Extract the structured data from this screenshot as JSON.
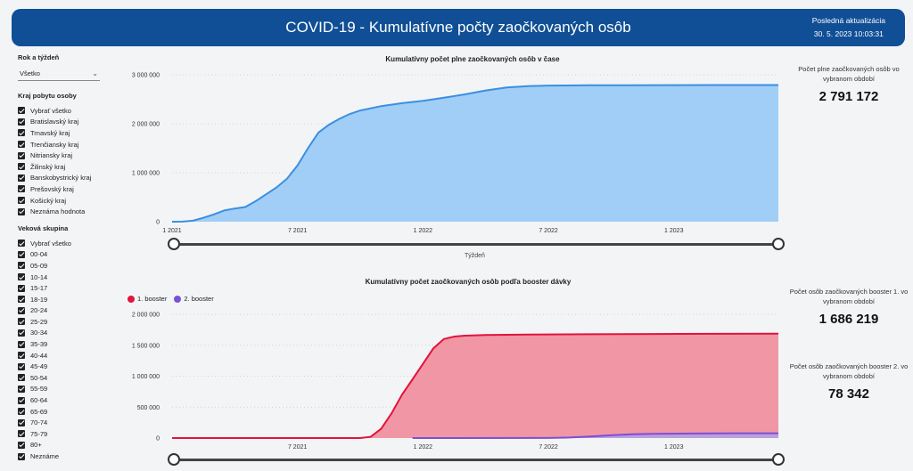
{
  "header": {
    "title": "COVID-19 - Kumulatívne počty zaočkovaných osôb",
    "update_label": "Posledná aktualizácia",
    "update_value": "30. 5. 2023 10:03:31"
  },
  "sidebar": {
    "year_week_label": "Rok a týždeň",
    "year_week_value": "Všetko",
    "region_label": "Kraj pobytu osoby",
    "regions": [
      "Vybrať všetko",
      "Bratislavský kraj",
      "Trnavský kraj",
      "Trenčiansky kraj",
      "Nitriansky kraj",
      "Žilinský kraj",
      "Banskobystrický kraj",
      "Prešovský kraj",
      "Košický kraj",
      "Neznáma hodnota"
    ],
    "age_label": "Veková skupina",
    "ages": [
      "Vybrať všetko",
      "00-04",
      "05-09",
      "10-14",
      "15-17",
      "18-19",
      "20-24",
      "25-29",
      "30-34",
      "35-39",
      "40-44",
      "45-49",
      "50-54",
      "55-59",
      "60-64",
      "65-69",
      "70-74",
      "75-79",
      "80+",
      "Neznáme"
    ]
  },
  "kpis": {
    "full": {
      "label": "Počet plne zaočkovaných osôb vo vybranom období",
      "value": "2 791 172"
    },
    "booster1": {
      "label": "Počet osôb zaočkovaných booster 1. vo vybranom období",
      "value": "1 686 219"
    },
    "booster2": {
      "label": "Počet osôb zaočkovaných booster 2. vo vybranom období",
      "value": "78 342"
    }
  },
  "chart_data": [
    {
      "type": "area",
      "title": "Kumulatívny počet plne zaočkovaných osôb v čase",
      "xlabel": "Týždeň",
      "ylabel": "",
      "x_ticks": [
        "1 2021",
        "7 2021",
        "1 2022",
        "7 2022",
        "1 2023"
      ],
      "y_ticks": [
        "0",
        "1 000 000",
        "2 000 000",
        "3 000 000"
      ],
      "ylim": [
        0,
        3000000
      ],
      "xlim_months": [
        0,
        29
      ],
      "color": "#3a8fe0",
      "fill": "#9ccbf7",
      "series": [
        {
          "points": [
            [
              0,
              0
            ],
            [
              0.5,
              2000
            ],
            [
              1,
              20000
            ],
            [
              1.5,
              80000
            ],
            [
              2,
              150000
            ],
            [
              2.5,
              230000
            ],
            [
              3,
              270000
            ],
            [
              3.5,
              300000
            ],
            [
              4,
              420000
            ],
            [
              4.5,
              560000
            ],
            [
              5,
              700000
            ],
            [
              5.5,
              880000
            ],
            [
              6,
              1150000
            ],
            [
              6.5,
              1500000
            ],
            [
              7,
              1820000
            ],
            [
              7.5,
              1980000
            ],
            [
              8,
              2100000
            ],
            [
              8.5,
              2200000
            ],
            [
              9,
              2270000
            ],
            [
              10,
              2360000
            ],
            [
              11,
              2420000
            ],
            [
              12,
              2470000
            ],
            [
              13,
              2530000
            ],
            [
              14,
              2600000
            ],
            [
              15,
              2680000
            ],
            [
              16,
              2740000
            ],
            [
              17,
              2770000
            ],
            [
              18,
              2780000
            ],
            [
              20,
              2785000
            ],
            [
              22,
              2788000
            ],
            [
              24,
              2789500
            ],
            [
              26,
              2790500
            ],
            [
              29,
              2791172
            ]
          ]
        }
      ]
    },
    {
      "type": "area",
      "title": "Kumulatívny počet zaočkovaných osôb podľa booster dávky",
      "xlabel": "",
      "ylabel": "",
      "x_ticks": [
        "7 2021",
        "1 2022",
        "7 2022",
        "1 2023"
      ],
      "y_ticks": [
        "0",
        "500 000",
        "1 000 000",
        "1 500 000",
        "2 000 000"
      ],
      "ylim": [
        0,
        2000000
      ],
      "xlim_months": [
        0,
        29
      ],
      "legend": [
        "1. booster",
        "2. booster"
      ],
      "series": [
        {
          "name": "1. booster",
          "color": "#e0143c",
          "fill": "#f0909f",
          "points": [
            [
              0,
              0
            ],
            [
              9,
              0
            ],
            [
              9.5,
              20000
            ],
            [
              10,
              150000
            ],
            [
              10.5,
              400000
            ],
            [
              11,
              700000
            ],
            [
              11.5,
              950000
            ],
            [
              12,
              1200000
            ],
            [
              12.5,
              1450000
            ],
            [
              13,
              1600000
            ],
            [
              13.5,
              1640000
            ],
            [
              14,
              1655000
            ],
            [
              15,
              1665000
            ],
            [
              17,
              1672000
            ],
            [
              20,
              1678000
            ],
            [
              23,
              1682000
            ],
            [
              26,
              1684500
            ],
            [
              29,
              1686219
            ]
          ]
        },
        {
          "name": "2. booster",
          "color": "#7b4fd6",
          "fill": "#b6a0e0",
          "points": [
            [
              11.5,
              0
            ],
            [
              18,
              2000
            ],
            [
              19,
              8000
            ],
            [
              20,
              25000
            ],
            [
              21,
              45000
            ],
            [
              22,
              60000
            ],
            [
              23,
              68000
            ],
            [
              25,
              74000
            ],
            [
              27,
              77000
            ],
            [
              29,
              78342
            ]
          ]
        }
      ]
    }
  ]
}
